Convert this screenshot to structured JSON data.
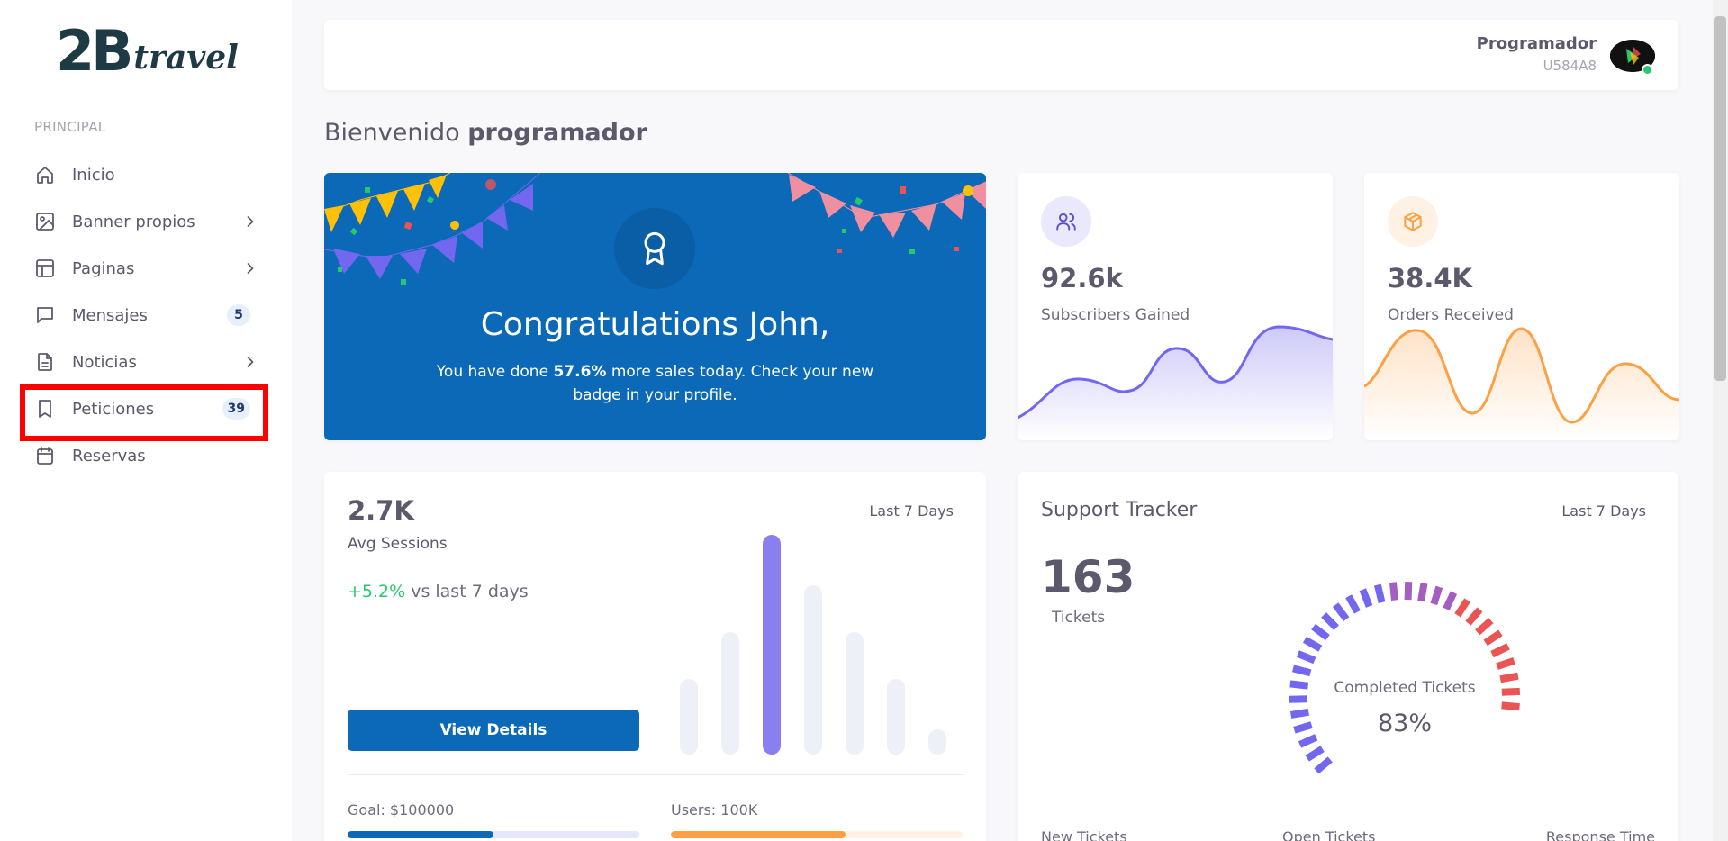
{
  "sidebar": {
    "logo_big": "2B",
    "logo_small": "travel",
    "section": "PRINCIPAL",
    "items": [
      {
        "label": "Inicio",
        "icon": "home-icon"
      },
      {
        "label": "Banner propios",
        "icon": "image-icon",
        "has_children": true
      },
      {
        "label": "Paginas",
        "icon": "layout-icon",
        "has_children": true
      },
      {
        "label": "Mensajes",
        "icon": "message-icon",
        "badge": "5"
      },
      {
        "label": "Noticias",
        "icon": "document-icon",
        "has_children": true
      },
      {
        "label": "Peticiones",
        "icon": "bookmark-icon",
        "badge": "39"
      },
      {
        "label": "Reservas",
        "icon": "calendar-icon"
      }
    ]
  },
  "header": {
    "user_name": "Programador",
    "user_id": "U584A8"
  },
  "welcome": {
    "prefix": "Bienvenido",
    "name": "programador"
  },
  "congrats": {
    "title": "Congratulations John,",
    "text_before": "You have done",
    "highlight": "57.6%",
    "text_after": "more sales today. Check your new badge in your profile."
  },
  "subscribers": {
    "value": "92.6k",
    "label": "Subscribers Gained",
    "color": "#7367f0"
  },
  "orders": {
    "value": "38.4K",
    "label": "Orders Received",
    "color": "#ff9f43"
  },
  "sessions": {
    "value": "2.7K",
    "label": "Avg Sessions",
    "range": "Last 7 Days",
    "delta": "+5.2%",
    "delta_text": "vs last 7 days",
    "button": "View Details",
    "goal_label": "Goal: $100000",
    "goal_progress": 0.5,
    "users_label": "Users: 100K",
    "users_progress": 0.6
  },
  "support": {
    "title": "Support Tracker",
    "range": "Last 7 Days",
    "tickets": "163",
    "tickets_label": "Tickets",
    "gauge_label": "Completed Tickets",
    "gauge_value": "83%",
    "footer": [
      "New Tickets",
      "Open Tickets",
      "Response Time"
    ]
  },
  "colors": {
    "primary": "#0b69b7",
    "purple": "#7367f0",
    "orange": "#ff9f43",
    "green": "#28c76f",
    "red": "#ea5455"
  }
}
